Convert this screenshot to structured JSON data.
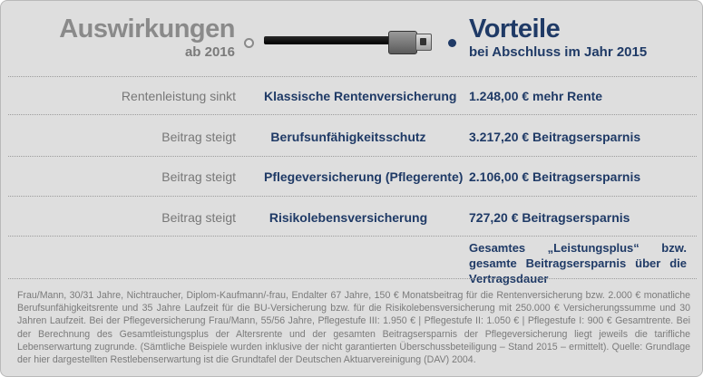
{
  "header": {
    "left_title": "Auswirkungen",
    "left_subtitle": "ab 2016",
    "right_title": "Vorteile",
    "right_subtitle": "bei Abschluss im Jahr 2015"
  },
  "rows": [
    {
      "reason": "Rentenleistung sinkt",
      "product": "Klassische Rentenversicherung",
      "benefit": "1.248,00 € mehr Rente"
    },
    {
      "reason": "Beitrag steigt",
      "product": "Berufsunfähigkeitsschutz",
      "benefit": "3.217,20 € Beitragsersparnis"
    },
    {
      "reason": "Beitrag steigt",
      "product": "Pflegeversicherung (Pflegerente)",
      "benefit": "2.106,00 € Beitragsersparnis"
    },
    {
      "reason": "Beitrag steigt",
      "product": "Risikolebensversicherung",
      "benefit": "727,20 € Beitragsersparnis"
    }
  ],
  "summary": "Gesamtes „Leistungsplus“ bzw. gesamte Beitragsersparnis über die Vertragsdauer",
  "footnote": "Frau/Mann, 30/31 Jahre, Nichtraucher, Diplom-Kaufmann/-frau, Endalter 67 Jahre, 150 € Monatsbeitrag für die Rentenversicherung bzw. 2.000 € monatliche Berufsunfähigkeitsrente und 35 Jahre Laufzeit für die BU-Versicherung bzw. für die Risikolebensversicherung mit 250.000 € Versicherungssumme und 30 Jahren Laufzeit. Bei der Pflegeversicherung Frau/Mann, 55/56 Jahre, Pflegestufe III: 1.950 € | Pflegestufe II: 1.050 € | Pflegestufe I: 900 € Gesamtrente. Bei der Berechnung des Gesamtleistungsplus der Altersrente und der gesamten Beitragsersparnis der Pflegeversicherung liegt jeweils die tarifliche Lebenserwartung zugrunde. (Sämtliche Beispiele wurden inklusive der nicht garantierten Überschussbeteiligung – Stand 2015 – ermittelt). Quelle: Grundlage der hier dargestellten Restlebenserwartung ist die Grundtafel der Deutschen Aktuarvereinigung (DAV) 2004.",
  "colors": {
    "accent": "#1f3a66",
    "muted": "#8a8a8a",
    "panel": "#dedede"
  },
  "slider_position": "right"
}
